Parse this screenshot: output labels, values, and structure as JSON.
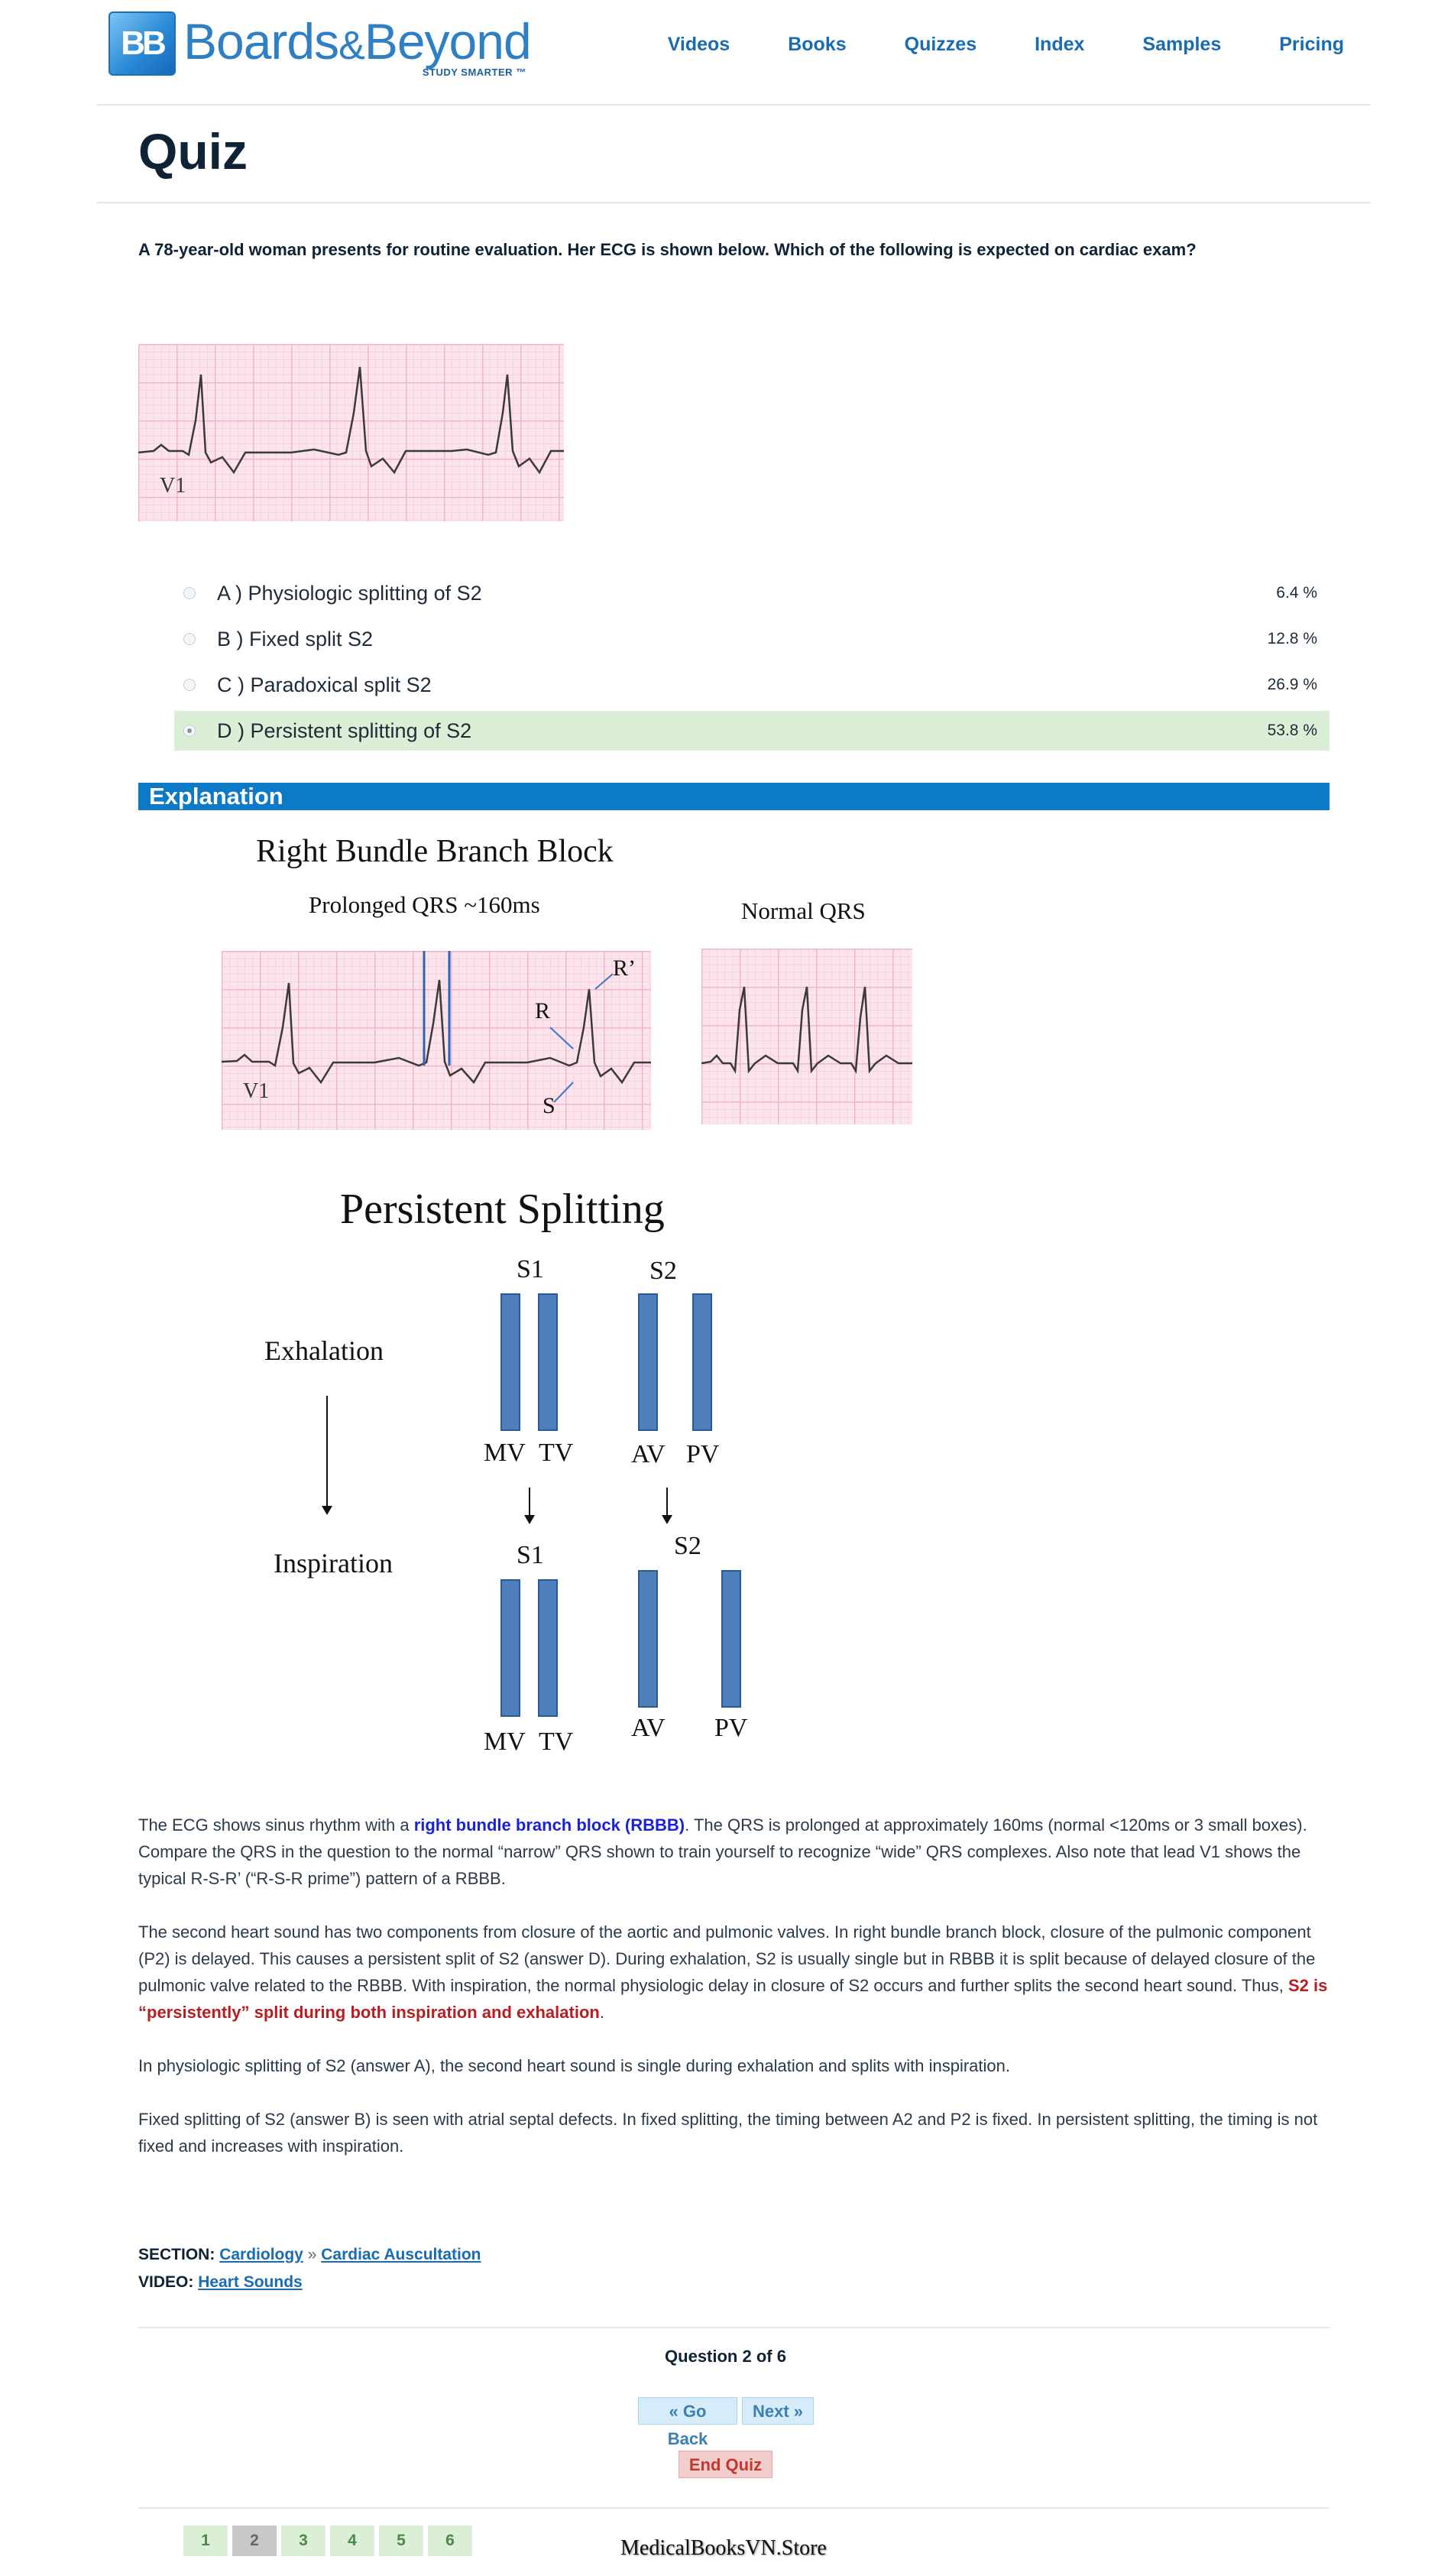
{
  "header": {
    "logo_badge": "BB",
    "logo_name": "Boards",
    "logo_amp": "&",
    "logo_name2": "Beyond",
    "logo_tagline": "STUDY SMARTER ™",
    "nav": [
      "Videos",
      "Books",
      "Quizzes",
      "Index",
      "Samples",
      "Pricing"
    ]
  },
  "page_title": "Quiz",
  "question": "A 78-year-old woman presents for routine evaluation. Her ECG is shown below. Which of the following is expected on cardiac exam?",
  "question_ecg": {
    "lead_label": "V1"
  },
  "answers": [
    {
      "text": "A ) Physiologic splitting of S2",
      "percent": "6.4 %"
    },
    {
      "text": "B ) Fixed split S2",
      "percent": "12.8 %"
    },
    {
      "text": "C ) Paradoxical split S2",
      "percent": "26.9 %"
    },
    {
      "text": "D ) Persistent splitting of S2",
      "percent": "53.8 %"
    }
  ],
  "selected_answer": "D",
  "explanation": {
    "title": "Explanation",
    "figure1": {
      "title": "Right Bundle Branch Block",
      "left_caption": "Prolonged QRS ~160ms",
      "right_caption": "Normal QRS",
      "lead_label": "V1",
      "labels": {
        "r_prime": "R’",
        "r": "R",
        "s": "S"
      }
    },
    "figure2": {
      "title": "Persistent Splitting",
      "phase1": "Exhalation",
      "phase2": "Inspiration",
      "s1": "S1",
      "s2": "S2",
      "valves": {
        "mv": "MV",
        "tv": "TV",
        "av": "AV",
        "pv": "PV"
      }
    },
    "p1_a": "The ECG shows sinus rhythm with a ",
    "p1_hl": "right bundle branch block (RBBB)",
    "p1_b": ". The QRS is prolonged at approximately 160ms (normal <120ms or 3 small boxes). Compare the QRS in the question to the normal “narrow” QRS shown to train yourself to recognize “wide” QRS complexes. Also note that lead V1 shows the typical R-S-R’ (“R-S-R prime”) pattern of a RBBB.",
    "p2_a": "The second heart sound has two components from closure of the aortic and pulmonic valves. In right bundle branch block, closure of the pulmonic component (P2) is delayed. This causes a persistent split of S2 (answer D). During exhalation, S2 is usually single but in RBBB it is split because of delayed closure of the pulmonic valve related to the RBBB. With inspiration, the normal physiologic delay in closure of S2 occurs and further splits the second heart sound. Thus, ",
    "p2_hl": "S2 is “persistently” split during both inspiration and exhalation",
    "p2_b": ".",
    "p3": "In physiologic splitting of S2 (answer A), the second heart sound is single during exhalation and splits with inspiration.",
    "p4": "Fixed splitting of S2 (answer B) is seen with atrial septal defects. In fixed splitting, the timing between A2 and P2 is fixed. In persistent splitting, the timing is not fixed and increases with inspiration."
  },
  "section": {
    "label": "SECTION:",
    "link1": "Cardiology",
    "separator": "»",
    "link2": "Cardiac Auscultation"
  },
  "video": {
    "label": "VIDEO:",
    "link": "Heart Sounds"
  },
  "pagination": {
    "status": "Question 2 of 6",
    "go_back": "« Go Back",
    "next": "Next »",
    "end_quiz": "End Quiz",
    "pages": [
      "1",
      "2",
      "3",
      "4",
      "5",
      "6"
    ],
    "current_page": "2"
  },
  "watermark": "MedicalBooksVN.Store",
  "colors": {
    "brand_blue": "#1a6bb0",
    "explanation_bar": "#0c7ac6",
    "selected_answer_bg": "#dbeed6",
    "highlight_blue": "#1a24d6",
    "highlight_red": "#b51f24"
  }
}
